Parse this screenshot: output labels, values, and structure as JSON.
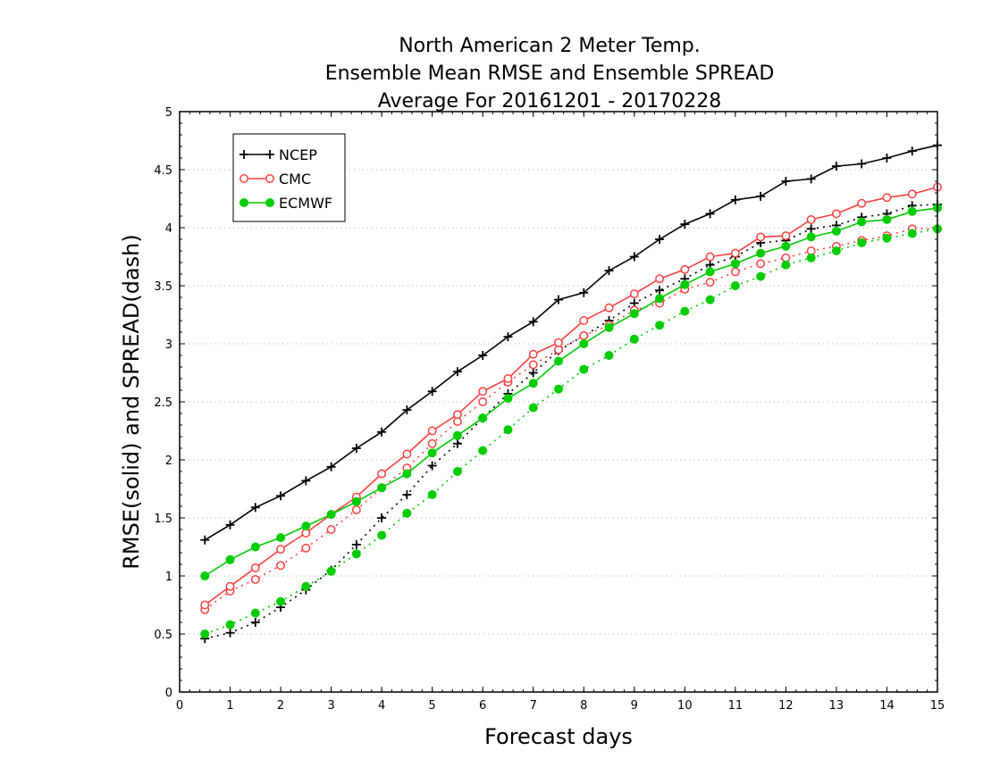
{
  "chart_data": {
    "type": "line",
    "title_lines": [
      "North American 2 Meter Temp.",
      "Ensemble Mean RMSE and Ensemble SPREAD",
      "Average For 20161201 - 20170228"
    ],
    "xlabel": "Forecast days",
    "ylabel": "RMSE(solid) and SPREAD(dash)",
    "xlim": [
      0,
      15
    ],
    "ylim": [
      0,
      5
    ],
    "x_ticks": [
      "0",
      "1",
      "2",
      "3",
      "4",
      "5",
      "6",
      "7",
      "8",
      "9",
      "10",
      "11",
      "12",
      "13",
      "14",
      "15"
    ],
    "y_ticks": [
      "0",
      "0.5",
      "1",
      "1.5",
      "2",
      "2.5",
      "3",
      "3.5",
      "4",
      "4.5",
      "5"
    ],
    "grid": "horizontal dotted",
    "legend_position": "top-left",
    "x": [
      0.5,
      1,
      1.5,
      2,
      2.5,
      3,
      3.5,
      4,
      4.5,
      5,
      5.5,
      6,
      6.5,
      7,
      7.5,
      8,
      8.5,
      9,
      9.5,
      10,
      10.5,
      11,
      11.5,
      12,
      12.5,
      13,
      13.5,
      14,
      14.5,
      15
    ],
    "series": [
      {
        "name": "NCEP",
        "color": "#000000",
        "marker": "plus",
        "rmse": [
          1.31,
          1.44,
          1.59,
          1.69,
          1.82,
          1.94,
          2.1,
          2.24,
          2.43,
          2.59,
          2.76,
          2.9,
          3.06,
          3.19,
          3.38,
          3.44,
          3.63,
          3.75,
          3.9,
          4.03,
          4.12,
          4.24,
          4.27,
          4.4,
          4.42,
          4.53,
          4.55,
          4.6,
          4.66,
          4.71
        ],
        "spread": [
          0.46,
          0.51,
          0.6,
          0.73,
          0.88,
          1.05,
          1.27,
          1.5,
          1.7,
          1.95,
          2.14,
          2.36,
          2.57,
          2.75,
          2.94,
          3.07,
          3.2,
          3.35,
          3.46,
          3.56,
          3.68,
          3.75,
          3.87,
          3.89,
          3.99,
          4.02,
          4.09,
          4.12,
          4.19,
          4.2
        ]
      },
      {
        "name": "CMC",
        "color": "#ff4040",
        "marker": "open-circle",
        "rmse": [
          0.75,
          0.91,
          1.07,
          1.23,
          1.37,
          1.53,
          1.68,
          1.88,
          2.05,
          2.25,
          2.39,
          2.59,
          2.7,
          2.91,
          3.01,
          3.2,
          3.31,
          3.43,
          3.56,
          3.64,
          3.75,
          3.78,
          3.92,
          3.93,
          4.07,
          4.12,
          4.21,
          4.26,
          4.29,
          4.35
        ],
        "spread": [
          0.71,
          0.87,
          0.97,
          1.09,
          1.24,
          1.4,
          1.57,
          1.76,
          1.93,
          2.14,
          2.33,
          2.5,
          2.67,
          2.82,
          2.95,
          3.07,
          3.16,
          3.29,
          3.35,
          3.47,
          3.53,
          3.62,
          3.69,
          3.74,
          3.8,
          3.84,
          3.89,
          3.93,
          3.99,
          3.99
        ]
      },
      {
        "name": "ECMWF",
        "color": "#00cc00",
        "marker": "filled-circle",
        "rmse": [
          1.0,
          1.14,
          1.25,
          1.33,
          1.43,
          1.53,
          1.64,
          1.76,
          1.88,
          2.06,
          2.21,
          2.36,
          2.53,
          2.66,
          2.85,
          3.0,
          3.14,
          3.26,
          3.39,
          3.51,
          3.62,
          3.69,
          3.78,
          3.84,
          3.92,
          3.97,
          4.05,
          4.07,
          4.14,
          4.17
        ],
        "spread": [
          0.5,
          0.58,
          0.68,
          0.78,
          0.91,
          1.04,
          1.19,
          1.35,
          1.54,
          1.7,
          1.9,
          2.08,
          2.26,
          2.45,
          2.61,
          2.78,
          2.9,
          3.04,
          3.16,
          3.28,
          3.38,
          3.5,
          3.58,
          3.68,
          3.74,
          3.8,
          3.87,
          3.91,
          3.95,
          3.99
        ]
      }
    ]
  }
}
